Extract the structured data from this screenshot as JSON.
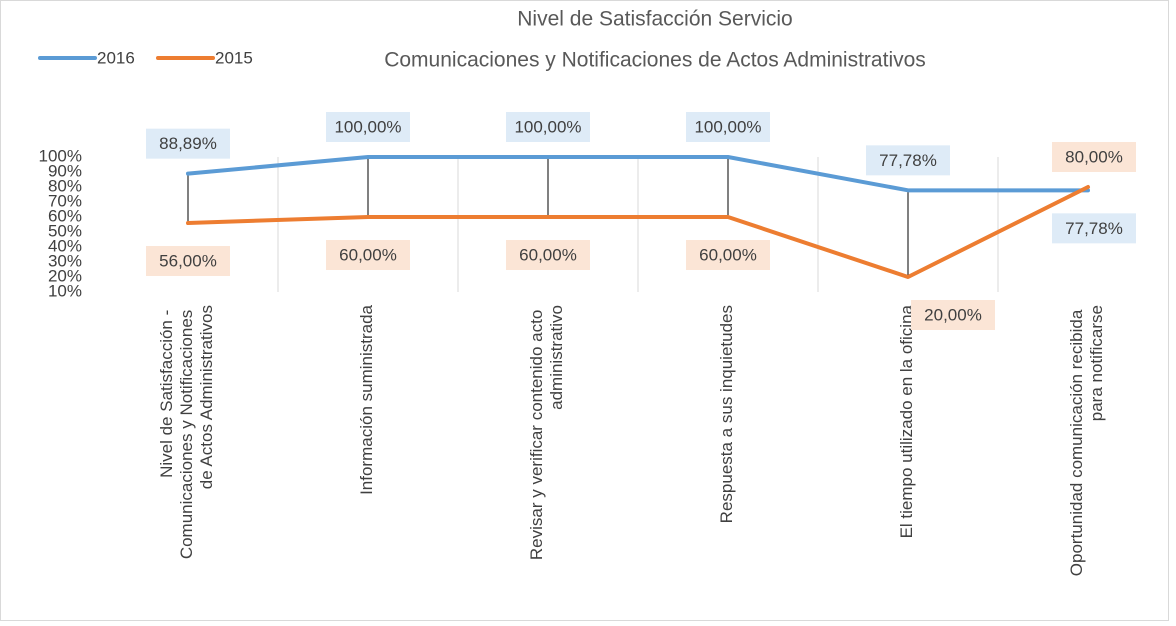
{
  "chart_data": {
    "type": "line",
    "title": "Nivel de Satisfacción Servicio",
    "subtitle": "Comunicaciones y Notificaciones de Actos Administrativos",
    "categories": [
      "Nivel de Satisfacción - Comunicaciones y Notificaciones de Actos Administrativos",
      "Información suministrada",
      "Revisar y verificar contenido acto administrativo",
      "Respuesta a sus inquietudes",
      "El tiempo utilizado en la oficina",
      "Oportunidad comunicación recibida para notificarse"
    ],
    "series": [
      {
        "name": "2016",
        "color": "#5b9bd5",
        "label_fill": "#deebf7",
        "values": [
          88.89,
          100,
          100,
          100,
          77.78,
          77.78
        ],
        "value_labels": [
          "88,89%",
          "100,00%",
          "100,00%",
          "100,00%",
          "77,78%",
          "77,78%"
        ]
      },
      {
        "name": "2015",
        "color": "#ed7d31",
        "label_fill": "#fbe5d6",
        "values": [
          56,
          60,
          60,
          60,
          20,
          80
        ],
        "value_labels": [
          "56,00%",
          "60,00%",
          "60,00%",
          "60,00%",
          "20,00%",
          "80,00%"
        ]
      }
    ],
    "ylim": [
      10,
      100
    ],
    "yticks": [
      {
        "value": 10,
        "label": "10%"
      },
      {
        "value": 20,
        "label": "20%"
      },
      {
        "value": 30,
        "label": "30%"
      },
      {
        "value": 40,
        "label": "40%"
      },
      {
        "value": 50,
        "label": "50%"
      },
      {
        "value": 60,
        "label": "60%"
      },
      {
        "value": 70,
        "label": "70%"
      },
      {
        "value": 80,
        "label": "80%"
      },
      {
        "value": 90,
        "label": "90%"
      },
      {
        "value": 100,
        "label": "100%"
      }
    ],
    "legend": "top-left",
    "grid": false
  }
}
